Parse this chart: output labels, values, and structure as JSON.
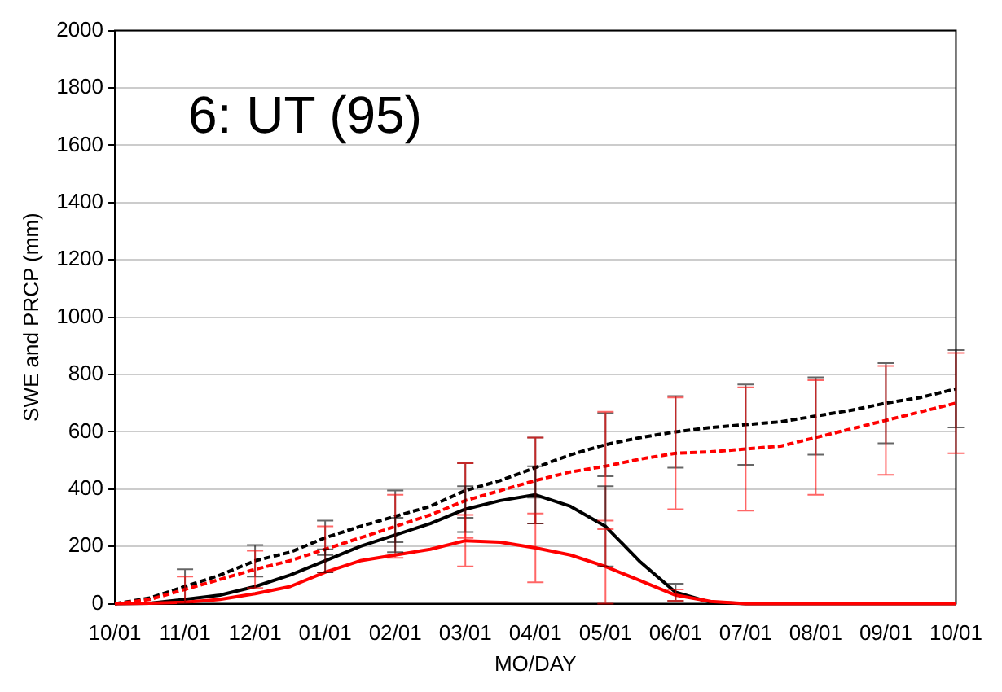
{
  "chart_data": {
    "type": "line",
    "title": "6: UT (95)",
    "xlabel": "MO/DAY",
    "ylabel": "SWE and PRCP (mm)",
    "categories": [
      "10/01",
      null,
      "11/01",
      null,
      "12/01",
      null,
      "01/01",
      null,
      "02/01",
      null,
      "03/01",
      null,
      "04/01",
      null,
      "05/01",
      null,
      "06/01",
      null,
      "07/01",
      null,
      "08/01",
      null,
      "09/01",
      null,
      "10/01"
    ],
    "ylim": [
      0,
      2000
    ],
    "yticks": [
      0,
      200,
      400,
      600,
      800,
      1000,
      1200,
      1400,
      1600,
      1800,
      2000
    ],
    "grid": "y",
    "legend": false,
    "marker": "none",
    "series": [
      {
        "color": "#000000",
        "line_style": "dashed",
        "values": [
          0,
          20,
          60,
          100,
          150,
          180,
          230,
          270,
          305,
          340,
          395,
          430,
          475,
          520,
          555,
          580,
          600,
          615,
          625,
          635,
          655,
          675,
          700,
          720,
          750
        ],
        "errors": [
          null,
          null,
          60,
          null,
          55,
          null,
          60,
          null,
          90,
          null,
          95,
          null,
          105,
          null,
          110,
          null,
          125,
          null,
          140,
          null,
          135,
          null,
          140,
          null,
          135
        ]
      },
      {
        "color": "#ff0000",
        "line_style": "dashed",
        "values": [
          0,
          15,
          50,
          85,
          120,
          150,
          190,
          230,
          270,
          310,
          360,
          395,
          430,
          460,
          480,
          505,
          525,
          530,
          540,
          550,
          580,
          610,
          640,
          670,
          700
        ],
        "errors": [
          null,
          null,
          45,
          null,
          65,
          null,
          80,
          null,
          110,
          null,
          130,
          null,
          150,
          null,
          190,
          null,
          195,
          null,
          215,
          null,
          200,
          null,
          190,
          null,
          175
        ]
      },
      {
        "color": "#000000",
        "line_style": "solid",
        "values": [
          0,
          2,
          15,
          30,
          60,
          100,
          150,
          200,
          240,
          280,
          330,
          360,
          380,
          340,
          270,
          145,
          40,
          5,
          0,
          0,
          0,
          0,
          0,
          0,
          0
        ],
        "errors": [
          null,
          null,
          null,
          null,
          null,
          null,
          40,
          null,
          60,
          null,
          80,
          null,
          100,
          null,
          140,
          null,
          30,
          null,
          null,
          null,
          null,
          null,
          null,
          null,
          null
        ]
      },
      {
        "color": "#ff0000",
        "line_style": "solid",
        "values": [
          0,
          2,
          5,
          15,
          35,
          60,
          110,
          150,
          170,
          190,
          220,
          215,
          195,
          170,
          130,
          80,
          30,
          8,
          0,
          0,
          0,
          0,
          0,
          0,
          0
        ],
        "errors": [
          null,
          null,
          null,
          null,
          null,
          null,
          null,
          null,
          null,
          null,
          90,
          null,
          120,
          null,
          130,
          null,
          20,
          null,
          null,
          null,
          null,
          null,
          null,
          null,
          null
        ]
      }
    ]
  }
}
